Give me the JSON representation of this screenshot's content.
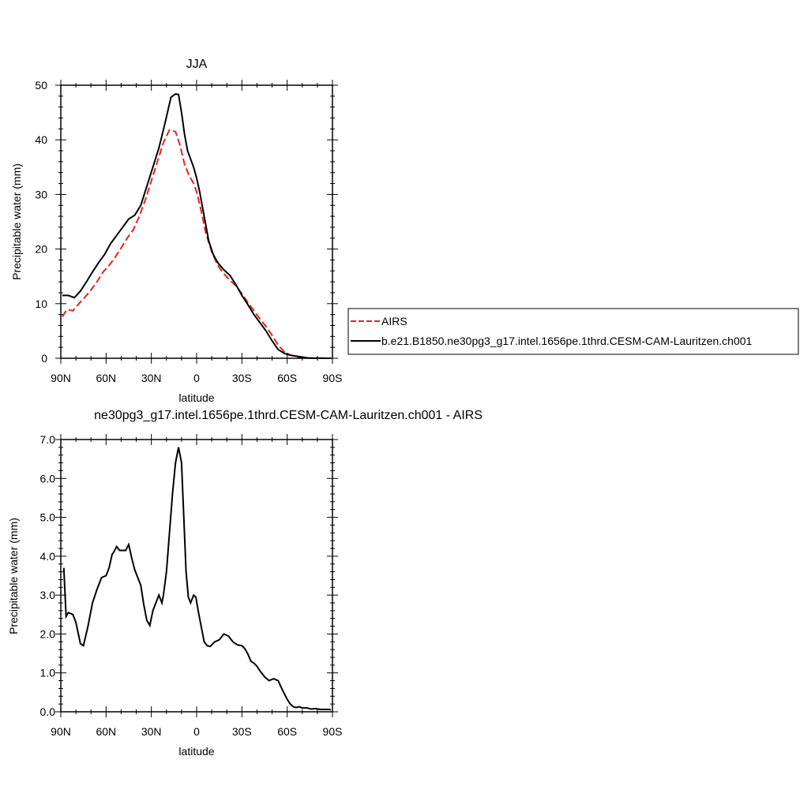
{
  "chart_data": [
    {
      "type": "line",
      "title": "JJA",
      "xlabel": "latitude",
      "ylabel": "Precipitable water (mm)",
      "xlim": [
        90,
        -90
      ],
      "ylim": [
        0,
        50
      ],
      "x_ticks": [
        90,
        60,
        30,
        0,
        -30,
        -60,
        -90
      ],
      "x_tick_labels": [
        "90N",
        "60N",
        "30N",
        "0",
        "30S",
        "60S",
        "90S"
      ],
      "y_ticks": [
        0,
        10,
        20,
        30,
        40,
        50
      ],
      "y_tick_labels": [
        "0",
        "10",
        "20",
        "30",
        "40",
        "50"
      ],
      "grid": false,
      "legend_position": "right",
      "series": [
        {
          "name": "AIRS",
          "color": "#e8211f",
          "dash": "dashed",
          "x": [
            89,
            86,
            82,
            78,
            74,
            70,
            66,
            62,
            58,
            54,
            50,
            46,
            42,
            38,
            34,
            30,
            26,
            22,
            18,
            14,
            11,
            8,
            5,
            2,
            0,
            -3,
            -6,
            -10,
            -14,
            -18,
            -22,
            -26,
            -30,
            -34,
            -38,
            -42,
            -46,
            -50,
            -54,
            -58,
            -62,
            -66,
            -70,
            -74,
            -78,
            -82,
            -86,
            -89
          ],
          "y": [
            7.6,
            8.9,
            8.7,
            10,
            11.2,
            12.5,
            14,
            15.8,
            17,
            18.5,
            20.2,
            22,
            23.5,
            26,
            29,
            32.5,
            36,
            39.5,
            41.8,
            41.5,
            39,
            35.5,
            33.5,
            32,
            30.5,
            27,
            23,
            19.5,
            17,
            15.5,
            14.3,
            13.3,
            11.8,
            10.2,
            8.7,
            7.2,
            5.8,
            4.2,
            2.4,
            1.2,
            0.6,
            0.3,
            0.1,
            0.05,
            0.02,
            0.02,
            0.01,
            0
          ]
        },
        {
          "name": "b.e21.B1850.ne30pg3_g17.intel.1656pe.1thrd.CESM-CAM-Lauritzen.ch001",
          "color": "#000000",
          "dash": "solid",
          "x": [
            89,
            85,
            81,
            77,
            73,
            69,
            65,
            61,
            57,
            53,
            49,
            45,
            41,
            37,
            33,
            29,
            25,
            21,
            17,
            14,
            12,
            10,
            8,
            6,
            4,
            2,
            0,
            -2,
            -5,
            -8,
            -11,
            -14,
            -18,
            -22,
            -26,
            -30,
            -34,
            -38,
            -42,
            -46,
            -50,
            -54,
            -58,
            -62,
            -66,
            -70,
            -74,
            -78,
            -82,
            -86,
            -89
          ],
          "y": [
            11.5,
            11.5,
            11.1,
            12.3,
            14,
            15.8,
            17.5,
            19,
            21,
            22.5,
            24,
            25.5,
            26.2,
            28,
            31.5,
            35,
            38.5,
            43,
            47.8,
            48.4,
            48.3,
            45,
            41,
            38,
            36.5,
            35,
            33,
            30.5,
            26,
            21.5,
            19,
            17.5,
            16.2,
            15.2,
            13.5,
            11.5,
            9.8,
            8,
            6.5,
            5,
            3.2,
            1.6,
            0.9,
            0.55,
            0.4,
            0.2,
            0.06,
            0.02,
            0.01,
            0,
            0
          ]
        }
      ]
    },
    {
      "type": "line",
      "title": "ne30pg3_g17.intel.1656pe.1thrd.CESM-CAM-Lauritzen.ch001 - AIRS",
      "xlabel": "latitude",
      "ylabel": "Precipitable water (mm)",
      "xlim": [
        90,
        -90
      ],
      "ylim": [
        0,
        7
      ],
      "x_ticks": [
        90,
        60,
        30,
        0,
        -30,
        -60,
        -90
      ],
      "x_tick_labels": [
        "90N",
        "60N",
        "30N",
        "0",
        "30S",
        "60S",
        "90S"
      ],
      "y_ticks": [
        0,
        1,
        2,
        3,
        4,
        5,
        6,
        7
      ],
      "y_tick_labels": [
        "0.0",
        "1.0",
        "2.0",
        "3.0",
        "4.0",
        "5.0",
        "6.0",
        "7.0"
      ],
      "grid": false,
      "series": [
        {
          "color": "#000000",
          "dash": "solid",
          "x": [
            88,
            86.5,
            85,
            82,
            80,
            77,
            75,
            72,
            69,
            66,
            63,
            60,
            58,
            56,
            55,
            53,
            51,
            49,
            47,
            45,
            43,
            41,
            39,
            37,
            35,
            33,
            31,
            29,
            27,
            25,
            23,
            22,
            20,
            18,
            16,
            14,
            12,
            10,
            8.5,
            7,
            5.5,
            4,
            2,
            0.5,
            -1,
            -3,
            -5,
            -7,
            -9,
            -12,
            -15,
            -18,
            -21,
            -24,
            -27,
            -30,
            -32,
            -34,
            -36,
            -38,
            -40,
            -42,
            -45,
            -48,
            -51,
            -54,
            -57,
            -60,
            -62,
            -64,
            -66,
            -68,
            -70,
            -73,
            -76,
            -79,
            -82,
            -85,
            -88,
            -89
          ],
          "y": [
            3.7,
            2.45,
            2.55,
            2.5,
            2.3,
            1.75,
            1.7,
            2.2,
            2.8,
            3.15,
            3.45,
            3.5,
            3.7,
            4.05,
            4.1,
            4.25,
            4.15,
            4.15,
            4.15,
            4.3,
            3.95,
            3.65,
            3.45,
            3.25,
            2.75,
            2.35,
            2.22,
            2.6,
            2.8,
            3.0,
            2.8,
            3.0,
            3.6,
            4.6,
            5.6,
            6.4,
            6.8,
            6.4,
            5.0,
            3.6,
            2.95,
            2.8,
            3.0,
            2.95,
            2.6,
            2.2,
            1.8,
            1.7,
            1.68,
            1.8,
            1.85,
            2.0,
            1.95,
            1.8,
            1.72,
            1.7,
            1.62,
            1.48,
            1.3,
            1.25,
            1.17,
            1.05,
            0.9,
            0.8,
            0.85,
            0.8,
            0.55,
            0.32,
            0.2,
            0.13,
            0.11,
            0.13,
            0.1,
            0.1,
            0.07,
            0.08,
            0.06,
            0.06,
            0.06,
            0.05
          ]
        }
      ]
    }
  ]
}
